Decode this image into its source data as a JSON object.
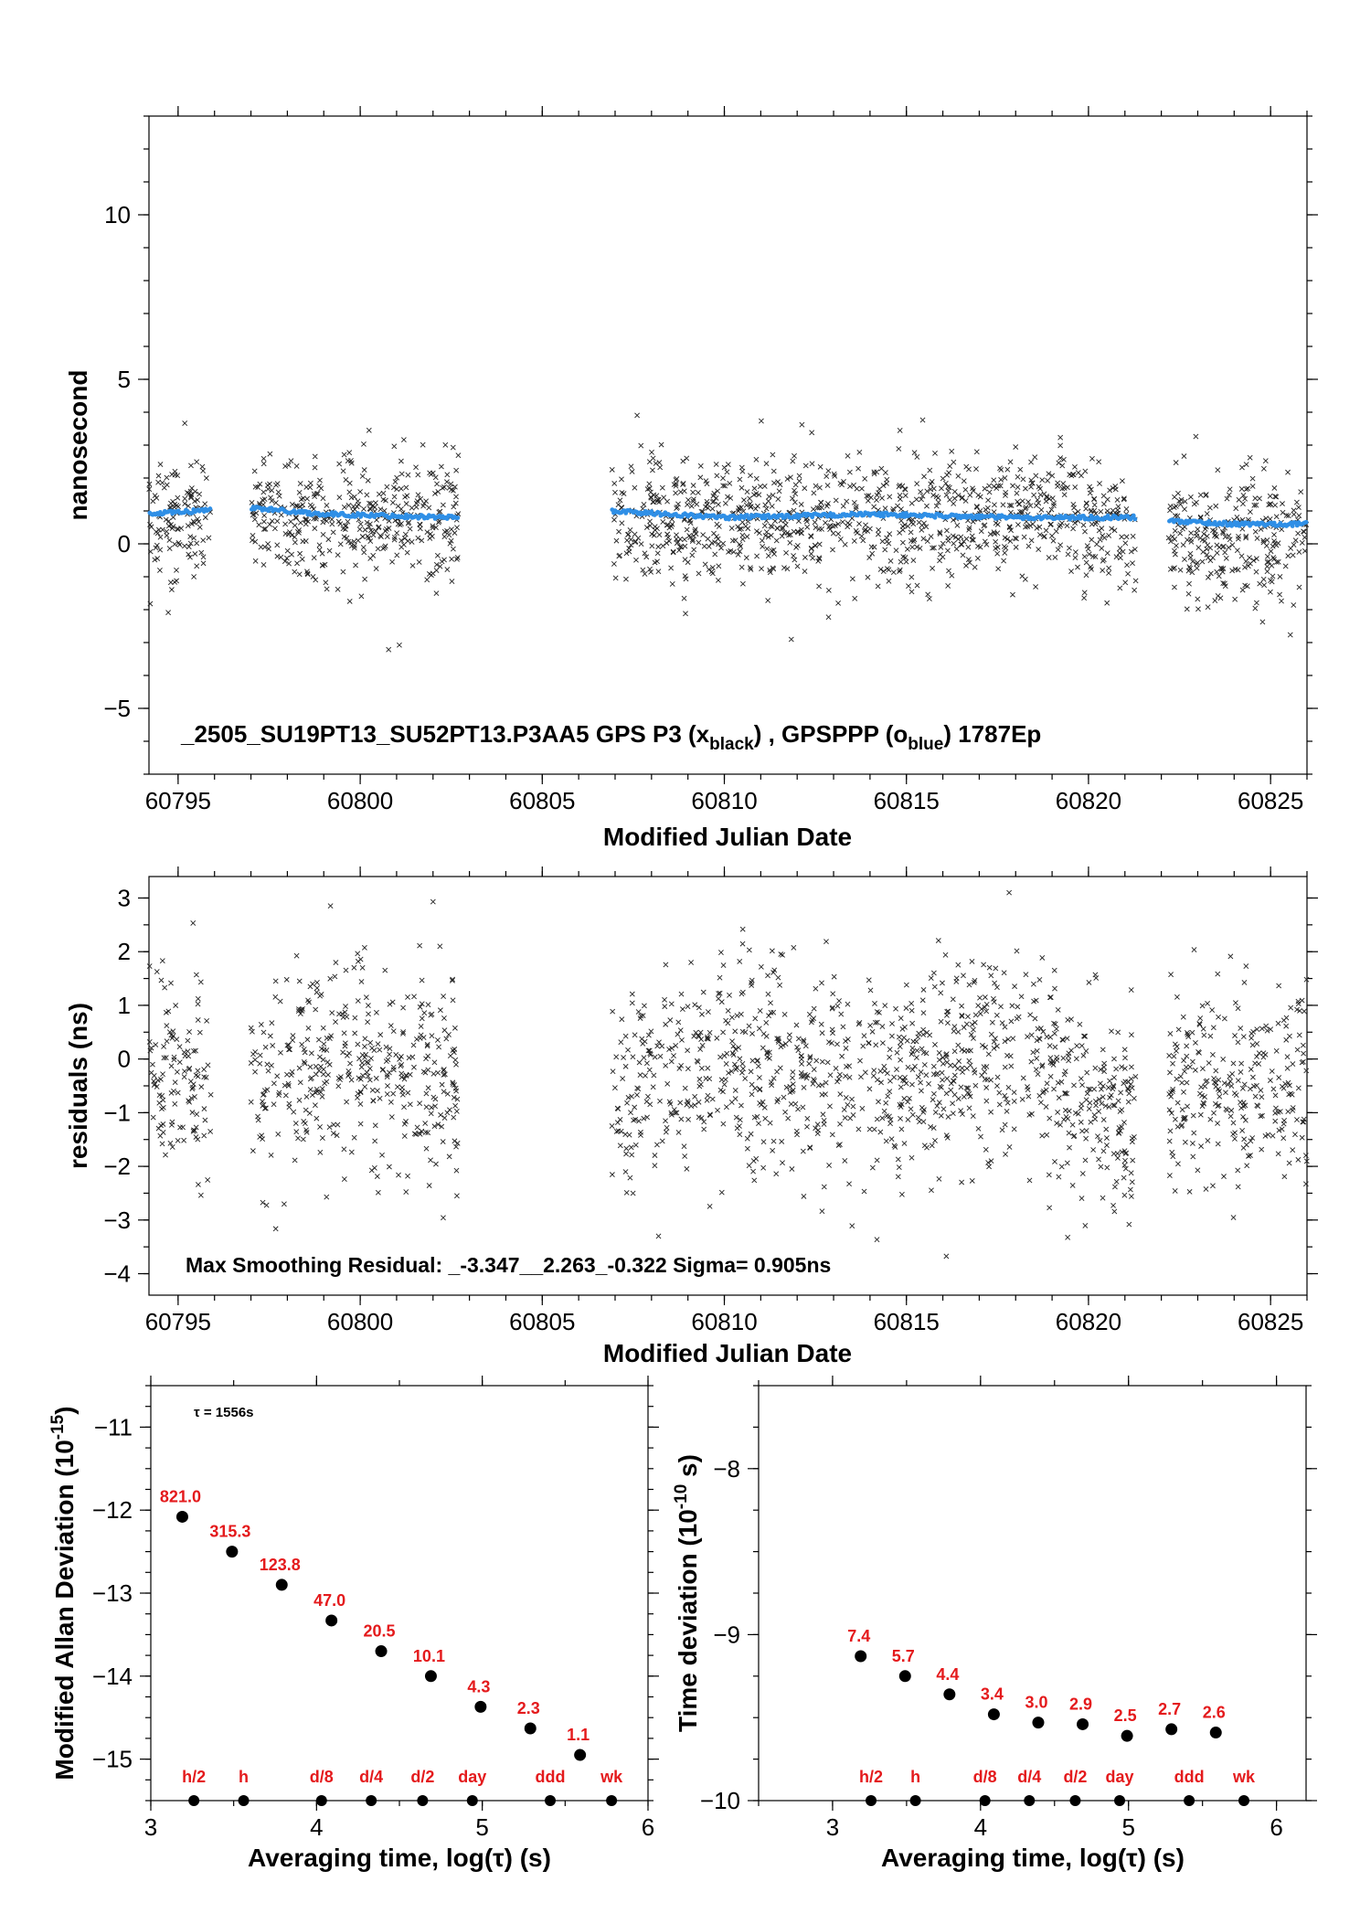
{
  "colors": {
    "black_series": "#222222",
    "blue_series": "#2f8fe6",
    "label_red": "#e41a1c",
    "axis": "#000000"
  },
  "panels": {
    "top": {
      "ylabel": "nanosecond",
      "xlabel": "Modified Julian Date",
      "annotation_main": "_2505_SU19PT13_SU52PT13.P3AA5     GPS P3 (x",
      "annotation_sub1": "black",
      "annotation_mid": ") ,  GPSPPP (o",
      "annotation_sub2": "blue",
      "annotation_end": ")  1787Ep"
    },
    "middle": {
      "ylabel": "residuals (ns)",
      "xlabel": "Modified Julian Date",
      "annotation": "Max Smoothing Residual: _-3.347__2.263_-0.322  Sigma= 0.905ns"
    },
    "bottom_left": {
      "ylabel_main": "Modified Allan Deviation (10",
      "ylabel_exp": "-15",
      "ylabel_end": ")",
      "xlabel": "Averaging time, log(τ) (s)",
      "tau_note": "τ = 1556s"
    },
    "bottom_right": {
      "ylabel_main": "Time deviation (10",
      "ylabel_exp": "-10",
      "ylabel_end": " s)",
      "xlabel": "Averaging time, log(τ) (s)"
    }
  },
  "chart_data": [
    {
      "type": "scatter",
      "id": "top",
      "xlabel": "Modified Julian Date",
      "ylabel": "nanosecond",
      "xlim": [
        60794.2,
        60826
      ],
      "ylim": [
        -7.0,
        13.0
      ],
      "x_ticks": [
        60795,
        60800,
        60805,
        60810,
        60815,
        60820,
        60825
      ],
      "y_ticks": [
        -5,
        0,
        5,
        10
      ],
      "y_tick_labels": [
        "−5",
        "0",
        "5",
        "10"
      ],
      "data_segments": [
        [
          60794.2,
          60795.9
        ],
        [
          60797.0,
          60802.7
        ],
        [
          60806.9,
          60821.3
        ],
        [
          60822.2,
          60826.0
        ]
      ],
      "series": [
        {
          "marker": "x",
          "color": "#222222",
          "spread_ns": 0.95,
          "level_ns": [
            [
              60794.2,
              0.8
            ],
            [
              60797.0,
              0.9
            ],
            [
              60800.0,
              0.8
            ],
            [
              60802.7,
              0.7
            ],
            [
              60806.9,
              0.6
            ],
            [
              60810.0,
              0.8
            ],
            [
              60815.0,
              0.7
            ],
            [
              60818.0,
              1.0
            ],
            [
              60821.3,
              0.6
            ],
            [
              60822.2,
              0.2
            ],
            [
              60826.0,
              0.3
            ]
          ]
        },
        {
          "marker": "o",
          "color": "#2f8fe6",
          "level_ns": [
            [
              60794.2,
              0.9
            ],
            [
              60795.5,
              1.0
            ],
            [
              60797.0,
              1.1
            ],
            [
              60799.0,
              0.9
            ],
            [
              60802.7,
              0.8
            ],
            [
              60806.9,
              1.0
            ],
            [
              60810.0,
              0.8
            ],
            [
              60814.0,
              0.9
            ],
            [
              60818.0,
              0.8
            ],
            [
              60821.3,
              0.8
            ],
            [
              60822.2,
              0.7
            ],
            [
              60824.0,
              0.6
            ],
            [
              60826.0,
              0.6
            ]
          ]
        }
      ]
    },
    {
      "type": "scatter",
      "id": "middle",
      "xlabel": "Modified Julian Date",
      "ylabel": "residuals (ns)",
      "xlim": [
        60794.2,
        60826
      ],
      "ylim": [
        -4.4,
        3.4
      ],
      "x_ticks": [
        60795,
        60800,
        60805,
        60810,
        60815,
        60820,
        60825
      ],
      "y_ticks": [
        -4,
        -3,
        -2,
        -1,
        0,
        1,
        2,
        3
      ],
      "y_tick_labels": [
        "−4",
        "−3",
        "−2",
        "−1",
        "0",
        "1",
        "2",
        "3"
      ],
      "data_segments": [
        [
          60794.2,
          60795.9
        ],
        [
          60797.0,
          60802.7
        ],
        [
          60806.9,
          60821.3
        ],
        [
          60822.2,
          60826.0
        ]
      ],
      "series": [
        {
          "marker": "x",
          "color": "#222222",
          "spread_ns": 0.95,
          "level_ns": [
            [
              60794.2,
              -0.2
            ],
            [
              60797.0,
              -0.6
            ],
            [
              60800.0,
              0.1
            ],
            [
              60802.7,
              -0.6
            ],
            [
              60806.9,
              -0.6
            ],
            [
              60810.0,
              -0.1
            ],
            [
              60815.0,
              -0.5
            ],
            [
              60818.0,
              0.1
            ],
            [
              60821.3,
              -1.2
            ],
            [
              60822.2,
              -0.6
            ],
            [
              60826.0,
              -0.5
            ]
          ]
        }
      ],
      "max_residual_ns": [
        -3.347,
        2.263,
        -0.322
      ],
      "sigma_ns": 0.905
    },
    {
      "type": "scatter",
      "id": "bottom_left",
      "xlabel": "Averaging time, log(τ) (s)",
      "ylabel": "Modified Allan Deviation (10^-15)",
      "xlim": [
        3,
        6
      ],
      "ylim": [
        -15.5,
        -10.5
      ],
      "x_ticks": [
        3,
        4,
        5,
        6
      ],
      "y_ticks": [
        -15,
        -14,
        -13,
        -12,
        -11
      ],
      "y_tick_labels": [
        "−15",
        "−14",
        "−13",
        "−12",
        "−11"
      ],
      "points": [
        {
          "x": 3.19,
          "y": -12.08,
          "label": "821.0"
        },
        {
          "x": 3.49,
          "y": -12.5,
          "label": "315.3"
        },
        {
          "x": 3.79,
          "y": -12.9,
          "label": "123.8"
        },
        {
          "x": 4.09,
          "y": -13.33,
          "label": "47.0"
        },
        {
          "x": 4.39,
          "y": -13.7,
          "label": "20.5"
        },
        {
          "x": 4.69,
          "y": -14.0,
          "label": "10.1"
        },
        {
          "x": 4.99,
          "y": -14.37,
          "label": "4.3"
        },
        {
          "x": 5.29,
          "y": -14.63,
          "label": "2.3"
        },
        {
          "x": 5.59,
          "y": -14.95,
          "label": "1.1"
        }
      ],
      "interval_markers": [
        {
          "x": 3.26,
          "label": "h/2"
        },
        {
          "x": 3.56,
          "label": "h"
        },
        {
          "x": 4.03,
          "label": "d/8"
        },
        {
          "x": 4.33,
          "label": "d/4"
        },
        {
          "x": 4.64,
          "label": "d/2"
        },
        {
          "x": 4.94,
          "label": "day"
        },
        {
          "x": 5.41,
          "label": "ddd"
        },
        {
          "x": 5.78,
          "label": "wk"
        }
      ]
    },
    {
      "type": "scatter",
      "id": "bottom_right",
      "xlabel": "Averaging time, log(τ) (s)",
      "ylabel": "Time deviation (10^-10 s)",
      "xlim": [
        2.5,
        6.2
      ],
      "ylim": [
        -10,
        -7.5
      ],
      "x_ticks": [
        3,
        4,
        5,
        6
      ],
      "y_ticks": [
        -10,
        -9,
        -8
      ],
      "y_tick_labels": [
        "−10",
        "−9",
        "−8"
      ],
      "points": [
        {
          "x": 3.19,
          "y": -9.13,
          "label": "7.4"
        },
        {
          "x": 3.49,
          "y": -9.25,
          "label": "5.7"
        },
        {
          "x": 3.79,
          "y": -9.36,
          "label": "4.4"
        },
        {
          "x": 4.09,
          "y": -9.48,
          "label": "3.4"
        },
        {
          "x": 4.39,
          "y": -9.53,
          "label": "3.0"
        },
        {
          "x": 4.69,
          "y": -9.54,
          "label": "2.9"
        },
        {
          "x": 4.99,
          "y": -9.61,
          "label": "2.5"
        },
        {
          "x": 5.29,
          "y": -9.57,
          "label": "2.7"
        },
        {
          "x": 5.59,
          "y": -9.59,
          "label": "2.6"
        }
      ],
      "interval_markers": [
        {
          "x": 3.26,
          "label": "h/2"
        },
        {
          "x": 3.56,
          "label": "h"
        },
        {
          "x": 4.03,
          "label": "d/8"
        },
        {
          "x": 4.33,
          "label": "d/4"
        },
        {
          "x": 4.64,
          "label": "d/2"
        },
        {
          "x": 4.94,
          "label": "day"
        },
        {
          "x": 5.41,
          "label": "ddd"
        },
        {
          "x": 5.78,
          "label": "wk"
        }
      ]
    }
  ]
}
